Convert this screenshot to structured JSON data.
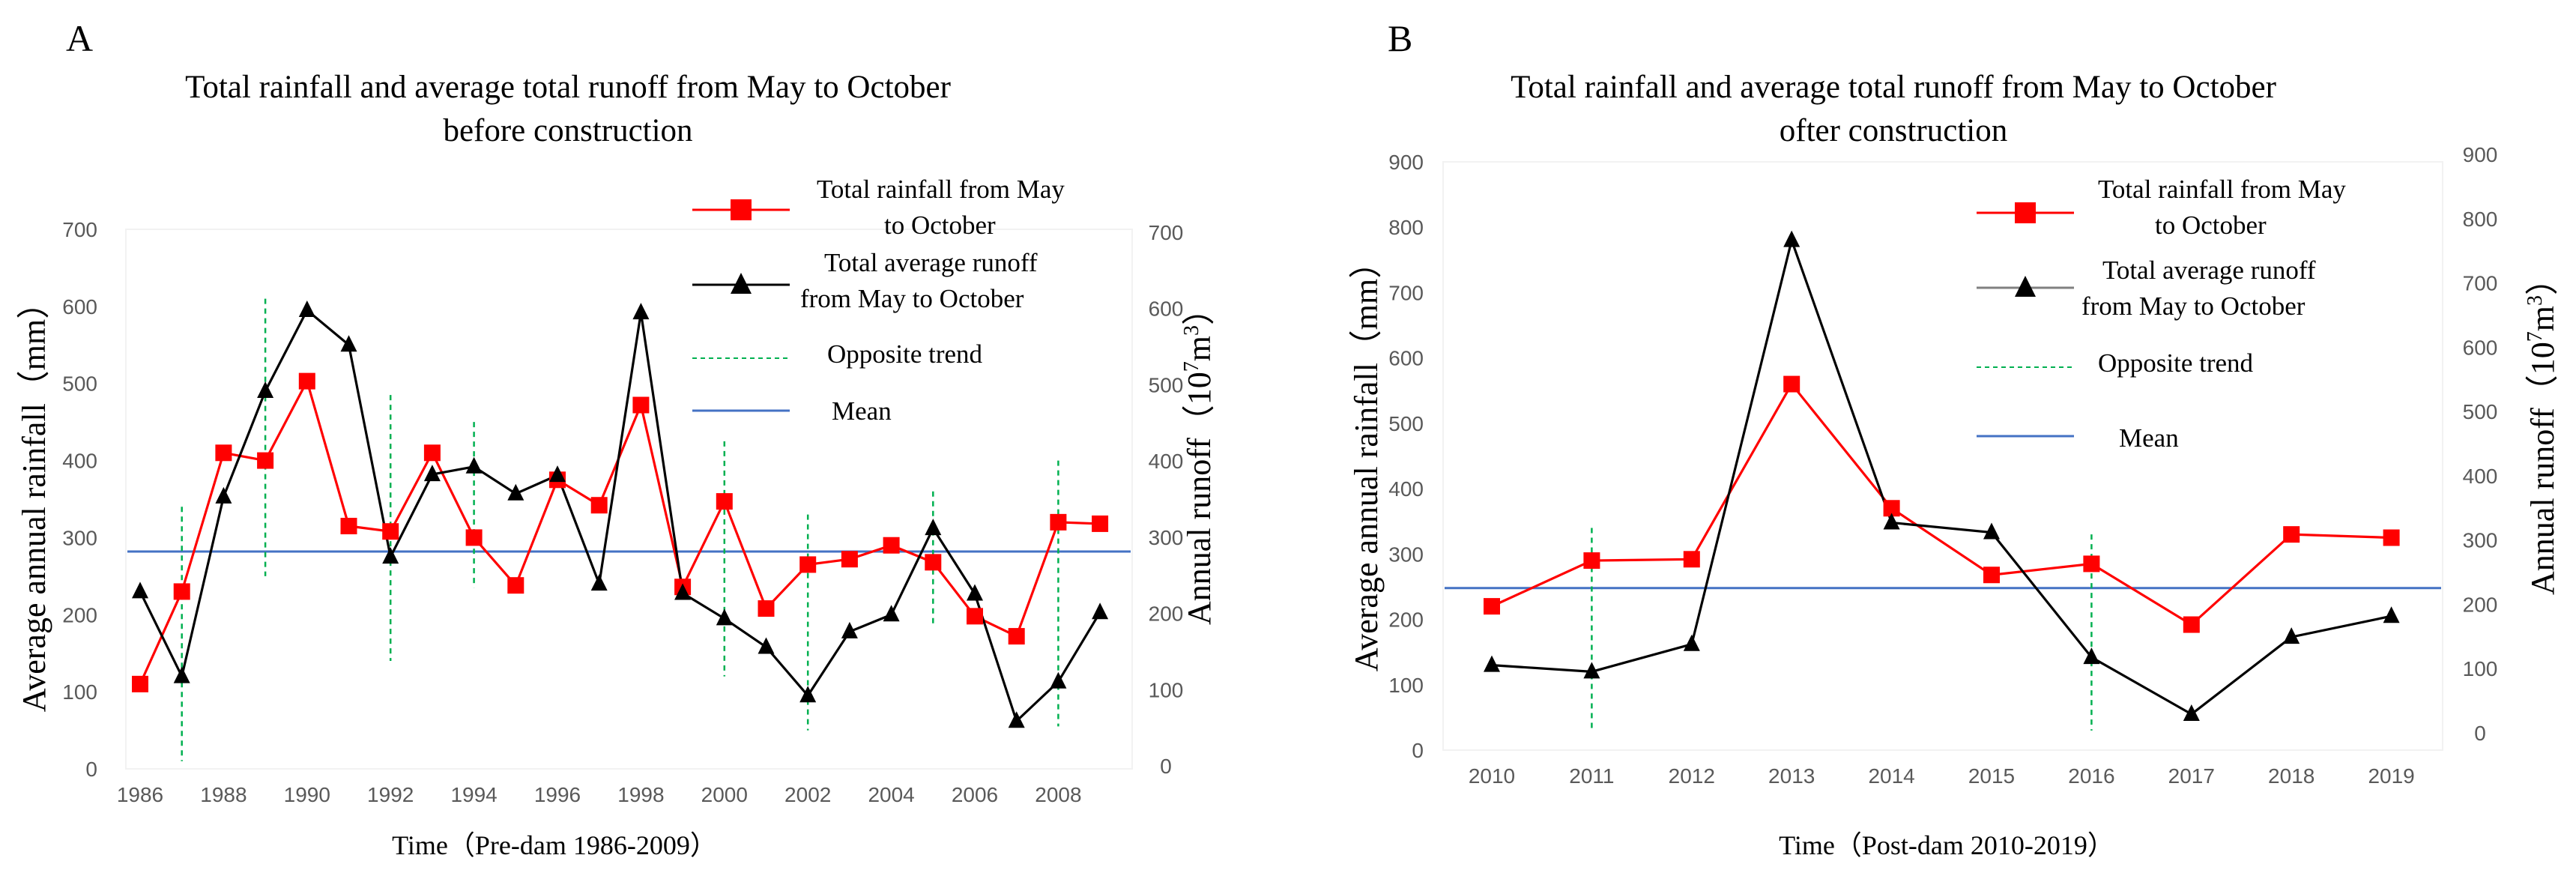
{
  "chart_data": [
    {
      "panel_label": "A",
      "type": "line",
      "title_lines": [
        "Total rainfall and average total runoff from May to October",
        "before construction"
      ],
      "xlabel": "Time（Pre-dam 1986-2009）",
      "ylabel": "Average annual rainfall（mm）",
      "y2label_text": "Annual runoff（",
      "y2label_unit": "10",
      "y2label_sup1": "7",
      "y2label_m": "m",
      "y2label_sup2": "3",
      "y2label_close": "）",
      "x": [
        1986,
        1987,
        1988,
        1989,
        1990,
        1991,
        1992,
        1993,
        1994,
        1995,
        1996,
        1997,
        1998,
        1999,
        2000,
        2001,
        2002,
        2003,
        2004,
        2005,
        2006,
        2007,
        2008,
        2009
      ],
      "xticks": [
        "1986",
        "1988",
        "1990",
        "1992",
        "1994",
        "1996",
        "1998",
        "2000",
        "2002",
        "2004",
        "2006",
        "2008"
      ],
      "ylim": [
        0,
        700
      ],
      "yticks": [
        "0",
        "100",
        "200",
        "300",
        "400",
        "500",
        "600",
        "700"
      ],
      "y2lim": [
        0,
        700
      ],
      "y2ticks": [
        "0",
        "100",
        "200",
        "300",
        "400",
        "500",
        "600",
        "700"
      ],
      "series": [
        {
          "name": "Total rainfall from May to October",
          "legend_lines": [
            "Total rainfall from May",
            "to October"
          ],
          "color": "#ff0000",
          "marker": "square",
          "values": [
            110,
            230,
            410,
            400,
            503,
            315,
            308,
            410,
            300,
            238,
            375,
            342,
            472,
            236,
            347,
            208,
            265,
            272,
            290,
            268,
            198,
            172,
            320,
            318
          ]
        },
        {
          "name": "Total average runoff from May to October",
          "legend_lines": [
            "Total average runoff",
            "from May to October"
          ],
          "color": "#000000",
          "marker": "triangle",
          "values": [
            230,
            120,
            353,
            490,
            595,
            550,
            275,
            382,
            392,
            357,
            381,
            240,
            592,
            228,
            195,
            158,
            95,
            178,
            200,
            312,
            227,
            62,
            113,
            203
          ]
        }
      ],
      "opposite_trend_label": "Opposite trend",
      "opposite_trend_color": "#00b050",
      "opposite_trend_lines": [
        {
          "x": 1987,
          "y_top": 340,
          "y_bottom": 10
        },
        {
          "x": 1989,
          "y_top": 610,
          "y_bottom": 250
        },
        {
          "x": 1992,
          "y_top": 485,
          "y_bottom": 140
        },
        {
          "x": 1994,
          "y_top": 450,
          "y_bottom": 235
        },
        {
          "x": 2000,
          "y_top": 425,
          "y_bottom": 120
        },
        {
          "x": 2002,
          "y_top": 330,
          "y_bottom": 50
        },
        {
          "x": 2005,
          "y_top": 360,
          "y_bottom": 185
        },
        {
          "x": 2008,
          "y_top": 400,
          "y_bottom": 55
        }
      ],
      "mean_label": "Mean",
      "mean_color": "#4472c4",
      "mean_value": 282
    },
    {
      "panel_label": "B",
      "type": "line",
      "title_lines": [
        "Total rainfall and average total runoff from May to October",
        "ofter construction"
      ],
      "xlabel": "Time（Post-dam 2010-2019）",
      "ylabel": "Average annual rainfall（mm）",
      "y2label_text": "Annual runoff（",
      "y2label_unit": "10",
      "y2label_sup1": "7",
      "y2label_m": "m",
      "y2label_sup2": "3",
      "y2label_close": "）",
      "x": [
        2010,
        2011,
        2012,
        2013,
        2014,
        2015,
        2016,
        2017,
        2018,
        2019
      ],
      "xticks": [
        "2010",
        "2011",
        "2012",
        "2013",
        "2014",
        "2015",
        "2016",
        "2017",
        "2018",
        "2019"
      ],
      "ylim": [
        0,
        900
      ],
      "yticks": [
        "0",
        "100",
        "200",
        "300",
        "400",
        "500",
        "600",
        "700",
        "800",
        "900"
      ],
      "y2lim": [
        0,
        900
      ],
      "y2ticks": [
        "0",
        "100",
        "200",
        "300",
        "400",
        "500",
        "600",
        "700",
        "800",
        "900"
      ],
      "series": [
        {
          "name": "Total rainfall from May to October",
          "legend_lines": [
            "Total rainfall from May",
            "to October"
          ],
          "color": "#ff0000",
          "marker": "square",
          "values": [
            220,
            290,
            292,
            560,
            370,
            268,
            285,
            192,
            330,
            325
          ]
        },
        {
          "name": "Total average runoff from May to October",
          "legend_lines": [
            "Total average runoff",
            "from May to October"
          ],
          "color": "#000000",
          "marker": "triangle",
          "values": [
            130,
            120,
            162,
            780,
            348,
            333,
            142,
            55,
            173,
            205
          ]
        }
      ],
      "opposite_trend_label": "Opposite trend",
      "opposite_trend_color": "#00b050",
      "opposite_trend_lines": [
        {
          "x": 2011,
          "y_top": 340,
          "y_bottom": 30
        },
        {
          "x": 2016,
          "y_top": 330,
          "y_bottom": 30
        }
      ],
      "mean_label": "Mean",
      "mean_color": "#4472c4",
      "mean_value": 248
    }
  ]
}
